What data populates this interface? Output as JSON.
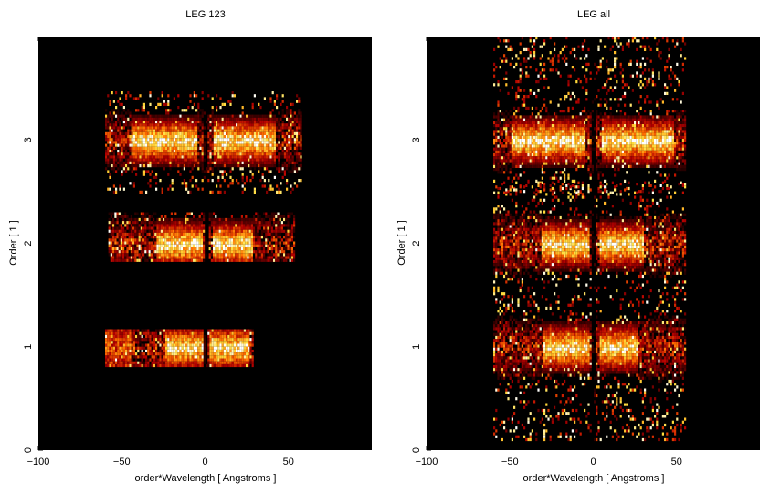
{
  "colors": {
    "background": "#000000",
    "heat_low": "#3a0000",
    "heat_mid": "#b04000",
    "heat_high": "#ffb040",
    "heat_max": "#ffffff"
  },
  "chart_data": [
    {
      "type": "heatmap",
      "title": "LEG 123",
      "xlabel": "order*Wavelength [ Angstroms ]",
      "ylabel": "Order [ 1 ]",
      "xlim": [
        -100,
        100
      ],
      "ylim": [
        0,
        4
      ],
      "xticks": [
        -100,
        -50,
        0,
        50
      ],
      "yticks": [
        0,
        1,
        2,
        3
      ],
      "xtick_labels": [
        "−100",
        "−50",
        "0",
        "50"
      ],
      "ytick_labels": [
        "0",
        "1",
        "2",
        "3"
      ],
      "bands": [
        {
          "order": 1,
          "x_range": [
            -60,
            28
          ],
          "y_range": [
            0.82,
            1.17
          ],
          "hot_left": [
            -25,
            0
          ],
          "hot_right": [
            2,
            26
          ],
          "edge_hot": [
            -60,
            -45
          ]
        },
        {
          "order": 2,
          "x_range": [
            -58,
            53
          ],
          "y_range": [
            1.82,
            2.3
          ],
          "hot_left": [
            -30,
            -2
          ],
          "hot_right": [
            4,
            28
          ]
        },
        {
          "order": 3,
          "x_range": [
            -60,
            57
          ],
          "y_range": [
            2.5,
            3.47
          ],
          "hot_left": [
            -45,
            -5
          ],
          "hot_right": [
            5,
            42
          ]
        }
      ]
    },
    {
      "type": "heatmap",
      "title": "LEG all",
      "xlabel": "order*Wavelength [ Angstroms ]",
      "ylabel": "Order [ 1 ]",
      "xlim": [
        -100,
        100
      ],
      "ylim": [
        0,
        4
      ],
      "xticks": [
        -100,
        -50,
        0,
        50
      ],
      "yticks": [
        0,
        1,
        2,
        3
      ],
      "xtick_labels": [
        "−100",
        "−50",
        "0",
        "50"
      ],
      "ytick_labels": [
        "0",
        "1",
        "2",
        "3"
      ],
      "bands": [
        {
          "order": 1,
          "x_range": [
            -60,
            55
          ],
          "y_range": [
            0.1,
            1.5
          ],
          "hot_left": [
            -30,
            -3
          ],
          "hot_right": [
            3,
            26
          ]
        },
        {
          "order": 2,
          "x_range": [
            -60,
            55
          ],
          "y_range": [
            1.5,
            2.6
          ],
          "hot_left": [
            -32,
            -3
          ],
          "hot_right": [
            3,
            30
          ]
        },
        {
          "order": 3,
          "x_range": [
            -60,
            55
          ],
          "y_range": [
            2.5,
            4.0
          ],
          "hot_left": [
            -50,
            -5
          ],
          "hot_right": [
            5,
            48
          ]
        }
      ]
    }
  ]
}
